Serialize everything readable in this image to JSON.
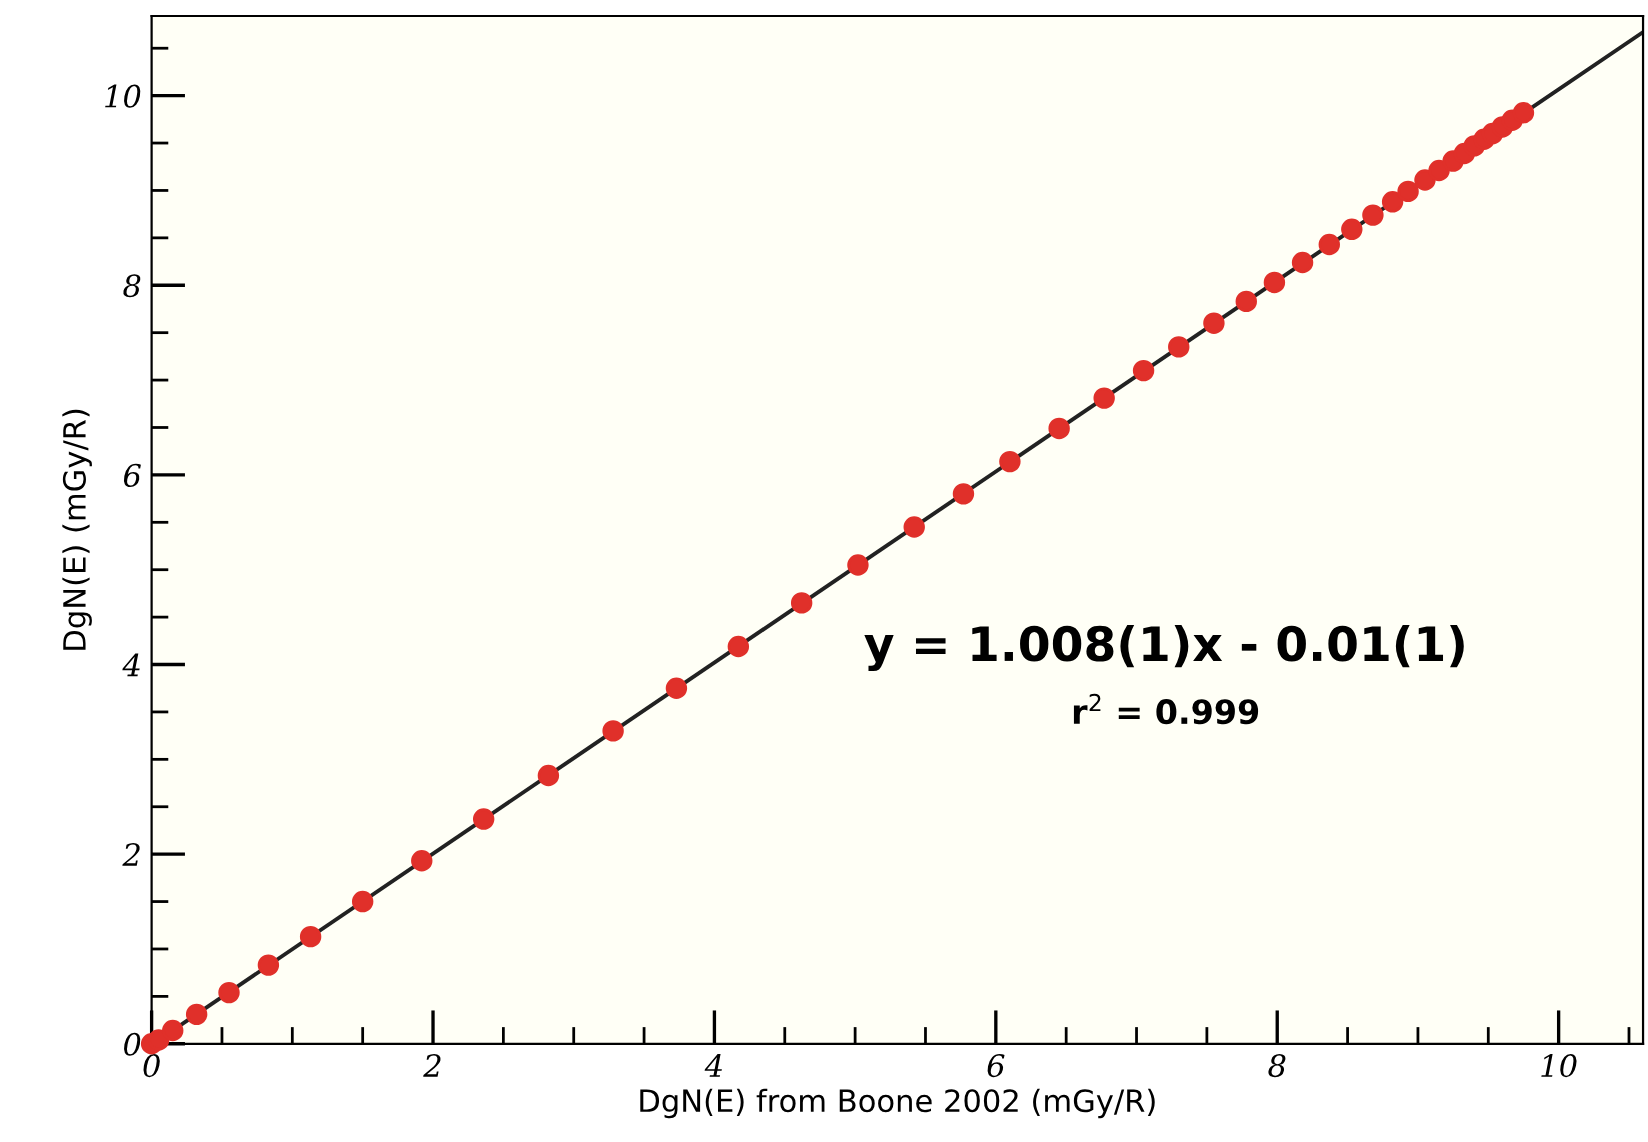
{
  "chart_data": {
    "type": "scatter",
    "xlabel": "DgN(E) from Boone 2002 (mGy/R)",
    "ylabel": "DgN(E) (mGy/R)",
    "xlim": [
      0,
      10.6
    ],
    "ylim": [
      0,
      10.84
    ],
    "xticks": [
      0,
      2,
      4,
      6,
      8,
      10
    ],
    "yticks": [
      0,
      2,
      4,
      6,
      8,
      10
    ],
    "grid": false,
    "marker": "circle",
    "series": [
      {
        "color": "#e0302a",
        "x": [
          0,
          0.05,
          0.15,
          0.32,
          0.55,
          0.83,
          1.13,
          1.5,
          1.92,
          2.36,
          2.82,
          3.28,
          3.73,
          4.17,
          4.62,
          5.02,
          5.42,
          5.77,
          6.1,
          6.45,
          6.77,
          7.05,
          7.3,
          7.55,
          7.78,
          7.98,
          8.18,
          8.37,
          8.53,
          8.68,
          8.82,
          8.93,
          9.05,
          9.15,
          9.25,
          9.33,
          9.4,
          9.47,
          9.53,
          9.6,
          9.67,
          9.75
        ],
        "values": [
          0.0,
          0.04,
          0.14,
          0.31,
          0.54,
          0.83,
          1.13,
          1.5,
          1.93,
          2.37,
          2.83,
          3.3,
          3.75,
          4.19,
          4.65,
          5.05,
          5.45,
          5.8,
          6.14,
          6.49,
          6.81,
          7.1,
          7.35,
          7.6,
          7.83,
          8.03,
          8.24,
          8.43,
          8.59,
          8.74,
          8.88,
          8.99,
          9.11,
          9.21,
          9.31,
          9.39,
          9.47,
          9.54,
          9.6,
          9.67,
          9.74,
          9.82
        ]
      },
      {
        "type": "line",
        "marker": "none",
        "color": "#222222",
        "x": [
          0.01,
          10.6
        ],
        "values": [
          0,
          10.67
        ]
      }
    ],
    "annotations": [
      "y = 1.008(1)x - 0.01(1)",
      "r$^{2}$ = 0.999"
    ]
  }
}
